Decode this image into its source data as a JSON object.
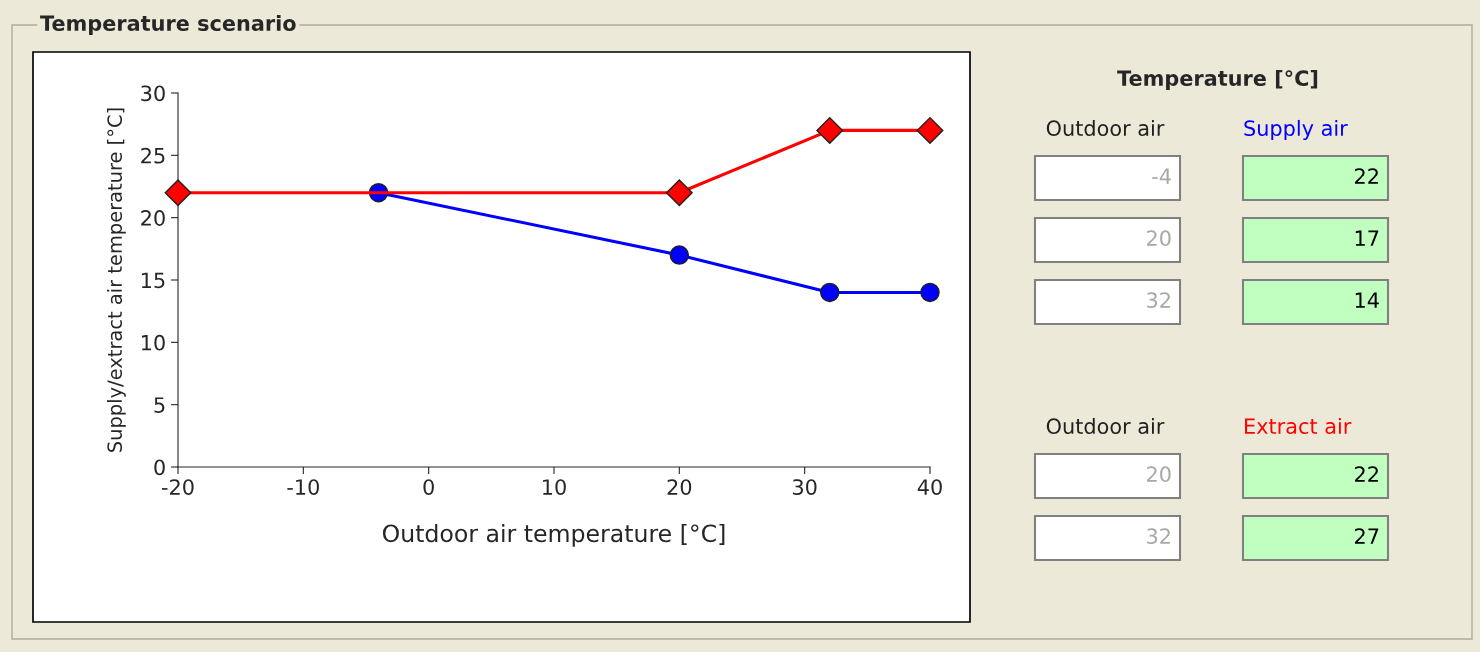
{
  "chart_data": [
    {
      "type": "line",
      "title": "Temperature scenario",
      "xlabel": "Outdoor air temperature [°C]",
      "ylabel": "Supply/extract air temperature [°C]",
      "xlim": [
        -20,
        40
      ],
      "xticks": [
        -20,
        -10,
        0,
        10,
        20,
        30,
        40
      ],
      "ylim": [
        0,
        30
      ],
      "yticks": [
        0,
        5,
        10,
        15,
        20,
        25,
        30
      ],
      "grid": false,
      "legend": false,
      "series": [
        {
          "color": "#0000ff",
          "marker": "circle",
          "x": [
            -4,
            20,
            32,
            40
          ],
          "values": [
            22,
            17,
            14,
            14
          ]
        },
        {
          "color": "#ff0000",
          "marker": "diamond",
          "x": [
            -20,
            20,
            32,
            40
          ],
          "values": [
            22,
            22,
            27,
            27
          ]
        }
      ]
    },
    {
      "type": "other",
      "title": "Temperature [°C]",
      "annotations": [
        "Outdoor air",
        "Supply air",
        "-4",
        "22",
        "20",
        "17",
        "32",
        "14",
        "Outdoor air",
        "Extract air",
        "20",
        "22",
        "32",
        "27"
      ]
    }
  ]
}
